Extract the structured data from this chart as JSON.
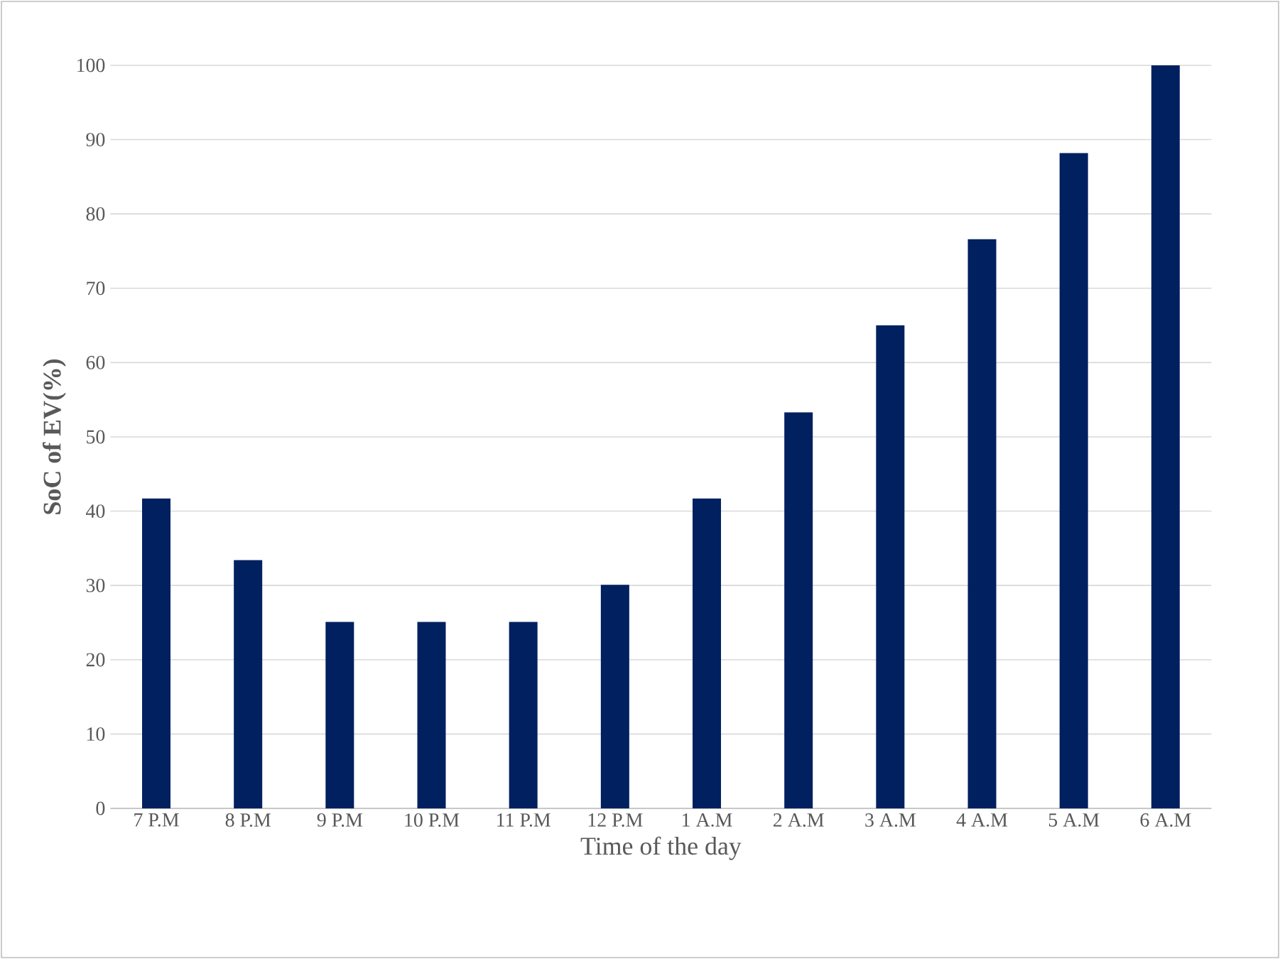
{
  "chart_data": {
    "type": "bar",
    "xlabel": "Time of the day",
    "ylabel": "SoC of EV(%)",
    "categories": [
      "7 P.M",
      "8 P.M",
      "9 P.M",
      "10 P.M",
      "11 P.M",
      "12 P.M",
      "1 A.M",
      "2 A.M",
      "3 A.M",
      "4 A.M",
      "5 A.M",
      "6 A.M"
    ],
    "values": [
      41.7,
      33.4,
      25.1,
      25.1,
      25.1,
      30.1,
      41.7,
      53.3,
      65,
      76.6,
      88.2,
      100
    ],
    "color": "#002060",
    "ylim": [
      0,
      100
    ],
    "yticks": [
      0,
      10,
      20,
      30,
      40,
      50,
      60,
      70,
      80,
      90,
      100
    ],
    "grid": "y"
  }
}
